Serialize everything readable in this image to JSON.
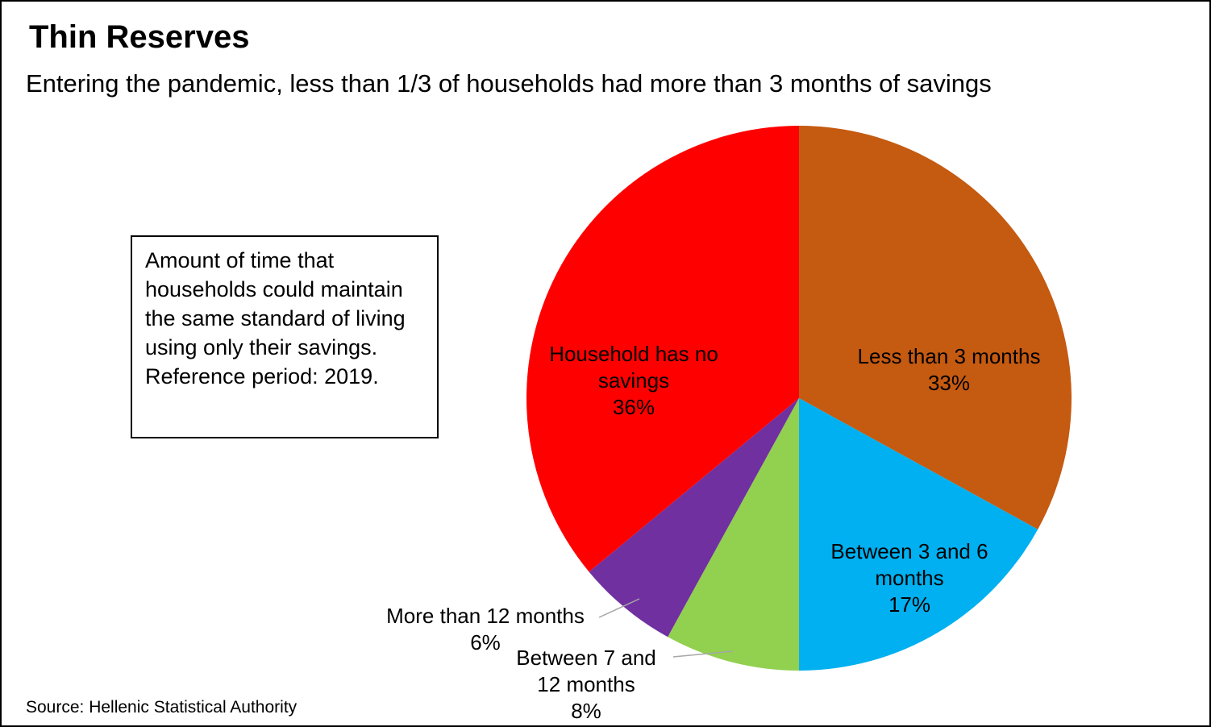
{
  "title": "Thin Reserves",
  "subtitle": "Entering the pandemic, less than 1/3 of households had more than 3 months of savings",
  "note_box": "Amount of time that households could maintain the same standard of living using only their savings. Reference period: 2019.",
  "source": "Source: Hellenic Statistical Authority",
  "chart_data": {
    "type": "pie",
    "title": "Thin Reserves",
    "subtitle": "Entering the pandemic, less than 1/3 of households had more than 3 months of savings",
    "categories": [
      "Less than 3 months",
      "Between 3 and 6 months",
      "Between 7 and 12 months",
      "More than 12 months",
      "Household has no savings"
    ],
    "values": [
      33,
      17,
      8,
      6,
      36
    ],
    "colors": [
      "#C55A11",
      "#00B0F0",
      "#92D050",
      "#7030A0",
      "#FF0000"
    ],
    "start_angle": "top",
    "direction": "clockwise",
    "legend_position": "none",
    "labels": [
      {
        "text": "Less than 3 months",
        "pct": "33%",
        "placement": "inside"
      },
      {
        "text": "Between 3 and 6 months",
        "pct": "17%",
        "placement": "inside"
      },
      {
        "text": "Between 7 and 12 months",
        "pct": "8%",
        "placement": "outside"
      },
      {
        "text": "More than 12 months",
        "pct": "6%",
        "placement": "outside"
      },
      {
        "text": "Household has no savings",
        "pct": "36%",
        "placement": "inside"
      }
    ],
    "note": "Amount of time that households could maintain the same standard of living using only their savings. Reference period: 2019.",
    "source": "Source: Hellenic Statistical Authority"
  }
}
